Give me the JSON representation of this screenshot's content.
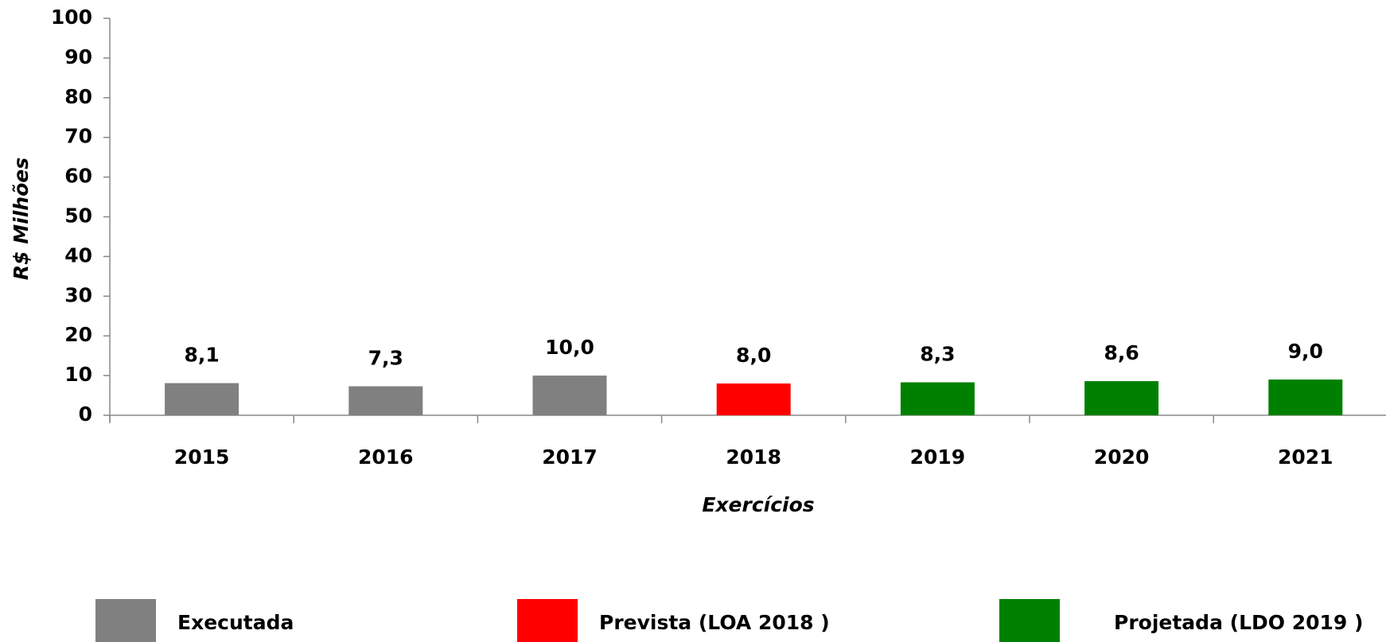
{
  "chart_data": {
    "type": "bar",
    "x_label": "Exercícios",
    "y_label": "R$ Milhões",
    "categories": [
      "2015",
      "2016",
      "2017",
      "2018",
      "2019",
      "2020",
      "2021"
    ],
    "values": [
      8.1,
      7.3,
      10.0,
      8.0,
      8.3,
      8.6,
      9.0
    ],
    "value_labels": [
      "8,1",
      "7,3",
      "10,0",
      "8,0",
      "8,3",
      "8,6",
      "9,0"
    ],
    "colors": [
      "#808080",
      "#808080",
      "#808080",
      "#ff0000",
      "#008000",
      "#008000",
      "#008000"
    ],
    "legend": [
      {
        "name": "Executada",
        "color": "#808080"
      },
      {
        "name": "Prevista (LOA 2018 )",
        "color": "#ff0000"
      },
      {
        "name": "Projetada (LDO 2019 )",
        "color": "#008000"
      }
    ],
    "ylim": [
      0,
      100
    ],
    "yticks": [
      0,
      10,
      20,
      30,
      40,
      50,
      60,
      70,
      80,
      90,
      100
    ],
    "grid": false
  }
}
